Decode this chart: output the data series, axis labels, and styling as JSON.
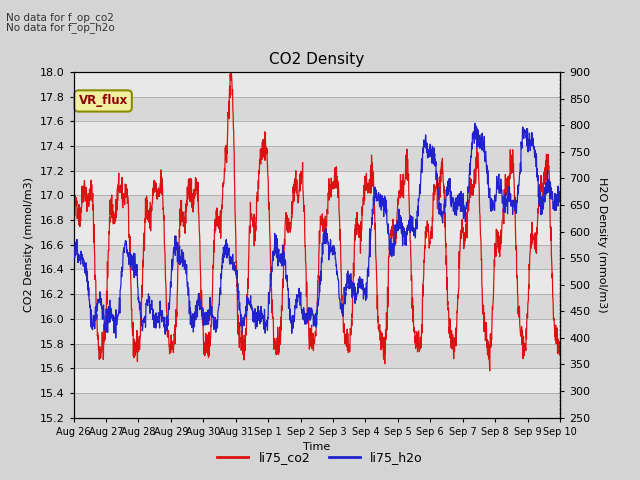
{
  "title": "CO2 Density",
  "xlabel": "Time",
  "ylabel_left": "CO2 Density (mmol/m3)",
  "ylabel_right": "H2O Density (mmol/m3)",
  "text_no_data_1": "No data for f_op_co2",
  "text_no_data_2": "No data for f_op_h2o",
  "vr_flux_label": "VR_flux",
  "ylim_left": [
    15.2,
    18.0
  ],
  "ylim_right": [
    250,
    900
  ],
  "yticks_left": [
    15.2,
    15.4,
    15.6,
    15.8,
    16.0,
    16.2,
    16.4,
    16.6,
    16.8,
    17.0,
    17.2,
    17.4,
    17.6,
    17.8,
    18.0
  ],
  "yticks_right": [
    250,
    300,
    350,
    400,
    450,
    500,
    550,
    600,
    650,
    700,
    750,
    800,
    850,
    900
  ],
  "color_co2": "#dd1111",
  "color_h2o": "#2222cc",
  "color_grid_dark": "#bbbbbb",
  "color_grid_light": "#dddddd",
  "bg_color": "#d8d8d8",
  "plot_bg_dark": "#c8c8c8",
  "plot_bg_light": "#e8e8e8",
  "legend_entries": [
    "li75_co2",
    "li75_h2o"
  ],
  "xtick_labels": [
    "Aug 26",
    "Aug 27",
    "Aug 28",
    "Aug 29",
    "Aug 30",
    "Aug 31",
    "Sep 1",
    "Sep 2",
    "Sep 3",
    "Sep 4",
    "Sep 5",
    "Sep 6",
    "Sep 7",
    "Sep 8",
    "Sep 9",
    "Sep 10"
  ],
  "n_days": 15,
  "pts_per_day": 120,
  "rand_seed": 42,
  "title_fontsize": 11,
  "axis_label_fontsize": 8,
  "tick_fontsize": 8,
  "legend_fontsize": 9
}
